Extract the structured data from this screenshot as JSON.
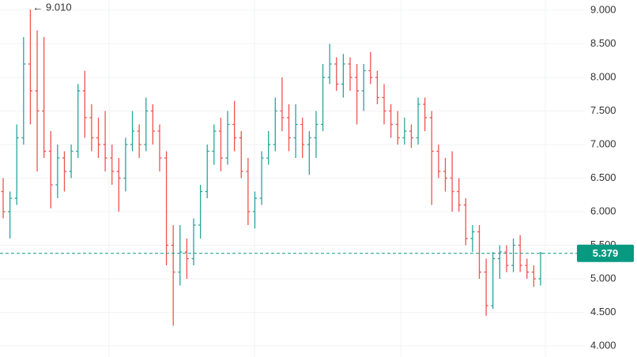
{
  "chart_data": {
    "type": "ohlc",
    "ohlc": [
      [
        6.3,
        6.5,
        5.9,
        6.0
      ],
      [
        6.0,
        6.3,
        5.6,
        6.2
      ],
      [
        6.2,
        7.3,
        6.1,
        7.1
      ],
      [
        7.1,
        8.6,
        7.0,
        8.2
      ],
      [
        8.2,
        9.01,
        7.3,
        7.8
      ],
      [
        7.8,
        8.7,
        6.6,
        7.5
      ],
      [
        7.5,
        8.6,
        6.8,
        6.9
      ],
      [
        6.9,
        7.2,
        6.05,
        6.4
      ],
      [
        6.4,
        7.0,
        6.2,
        6.8
      ],
      [
        6.8,
        6.9,
        6.3,
        6.6
      ],
      [
        6.6,
        7.0,
        6.5,
        6.9
      ],
      [
        6.9,
        7.9,
        6.8,
        7.8
      ],
      [
        7.8,
        8.1,
        7.1,
        7.4
      ],
      [
        7.4,
        7.6,
        6.9,
        7.1
      ],
      [
        7.1,
        7.4,
        6.8,
        7.0
      ],
      [
        7.0,
        7.5,
        6.6,
        6.8
      ],
      [
        6.8,
        7.0,
        6.4,
        6.6
      ],
      [
        6.6,
        6.8,
        6.0,
        6.5
      ],
      [
        6.5,
        7.1,
        6.3,
        7.0
      ],
      [
        7.0,
        7.5,
        6.9,
        7.2
      ],
      [
        7.2,
        7.3,
        6.8,
        7.0
      ],
      [
        7.0,
        7.7,
        6.9,
        7.5
      ],
      [
        7.5,
        7.6,
        7.0,
        7.2
      ],
      [
        7.2,
        7.3,
        6.6,
        6.8
      ],
      [
        6.8,
        6.9,
        5.2,
        5.5
      ],
      [
        5.5,
        5.8,
        4.3,
        5.1
      ],
      [
        5.1,
        5.8,
        4.9,
        5.4
      ],
      [
        5.4,
        5.6,
        5.0,
        5.3
      ],
      [
        5.3,
        5.9,
        5.2,
        5.8
      ],
      [
        5.8,
        6.4,
        5.6,
        6.3
      ],
      [
        6.3,
        7.0,
        6.2,
        6.9
      ],
      [
        6.9,
        7.3,
        6.7,
        7.2
      ],
      [
        7.2,
        7.4,
        6.6,
        6.8
      ],
      [
        6.8,
        7.5,
        6.7,
        7.3
      ],
      [
        7.3,
        7.65,
        6.9,
        7.1
      ],
      [
        7.1,
        7.2,
        6.5,
        6.6
      ],
      [
        6.6,
        6.8,
        5.8,
        6.0
      ],
      [
        6.0,
        6.3,
        5.75,
        6.2
      ],
      [
        6.2,
        6.9,
        6.1,
        6.8
      ],
      [
        6.8,
        7.2,
        6.7,
        7.0
      ],
      [
        7.0,
        7.7,
        6.9,
        7.5
      ],
      [
        7.5,
        8.0,
        7.2,
        7.4
      ],
      [
        7.4,
        7.6,
        6.9,
        7.1
      ],
      [
        7.1,
        7.6,
        6.8,
        7.3
      ],
      [
        7.3,
        7.4,
        6.8,
        7.0
      ],
      [
        7.0,
        7.2,
        6.55,
        7.1
      ],
      [
        7.1,
        7.5,
        6.8,
        7.3
      ],
      [
        7.3,
        8.2,
        7.2,
        8.0
      ],
      [
        8.0,
        8.5,
        7.9,
        8.2
      ],
      [
        8.2,
        8.3,
        7.8,
        7.9
      ],
      [
        7.9,
        8.35,
        7.7,
        8.2
      ],
      [
        8.2,
        8.3,
        7.8,
        8.0
      ],
      [
        8.0,
        8.2,
        7.3,
        7.8
      ],
      [
        7.8,
        8.2,
        7.5,
        8.1
      ],
      [
        8.1,
        8.38,
        7.9,
        8.0
      ],
      [
        8.0,
        8.1,
        7.6,
        7.7
      ],
      [
        7.7,
        7.9,
        7.3,
        7.5
      ],
      [
        7.5,
        7.6,
        7.1,
        7.3
      ],
      [
        7.3,
        7.5,
        7.0,
        7.1
      ],
      [
        7.1,
        7.4,
        7.0,
        7.2
      ],
      [
        7.2,
        7.3,
        6.95,
        7.1
      ],
      [
        7.1,
        7.7,
        7.0,
        7.6
      ],
      [
        7.6,
        7.7,
        7.2,
        7.4
      ],
      [
        7.4,
        7.5,
        6.1,
        6.9
      ],
      [
        6.9,
        7.0,
        6.5,
        6.6
      ],
      [
        6.6,
        6.8,
        6.3,
        6.5
      ],
      [
        6.5,
        6.9,
        6.0,
        6.3
      ],
      [
        6.3,
        6.5,
        6.0,
        6.1
      ],
      [
        6.1,
        6.2,
        5.5,
        5.6
      ],
      [
        5.6,
        5.8,
        5.4,
        5.7
      ],
      [
        5.7,
        5.8,
        5.0,
        5.1
      ],
      [
        5.1,
        5.3,
        4.45,
        4.6
      ],
      [
        4.6,
        5.4,
        4.55,
        5.3
      ],
      [
        5.3,
        5.5,
        5.0,
        5.4
      ],
      [
        5.4,
        5.5,
        5.1,
        5.2
      ],
      [
        5.2,
        5.6,
        5.1,
        5.5
      ],
      [
        5.5,
        5.65,
        5.1,
        5.2
      ],
      [
        5.2,
        5.3,
        5.0,
        5.1
      ],
      [
        5.1,
        5.2,
        4.88,
        5.0
      ],
      [
        5.0,
        5.4,
        4.9,
        5.379
      ]
    ],
    "up_color": "#26a69a",
    "down_color": "#ef5350",
    "last_price": 5.379,
    "last_price_color": "#089981",
    "high_annotation": "← 9.010",
    "ylim": [
      4.0,
      9.0
    ],
    "yticks": [
      {
        "value": 4.0,
        "label": "4.000"
      },
      {
        "value": 4.5,
        "label": "4.500"
      },
      {
        "value": 5.0,
        "label": "5.000"
      },
      {
        "value": 5.5,
        "label": "5.500"
      },
      {
        "value": 6.0,
        "label": "6.000"
      },
      {
        "value": 6.5,
        "label": "6.500"
      },
      {
        "value": 7.0,
        "label": "7.000"
      },
      {
        "value": 7.5,
        "label": "7.500"
      },
      {
        "value": 8.0,
        "label": "8.000"
      },
      {
        "value": 8.5,
        "label": "8.500"
      },
      {
        "value": 9.0,
        "label": "9.000"
      }
    ],
    "grid": true
  }
}
